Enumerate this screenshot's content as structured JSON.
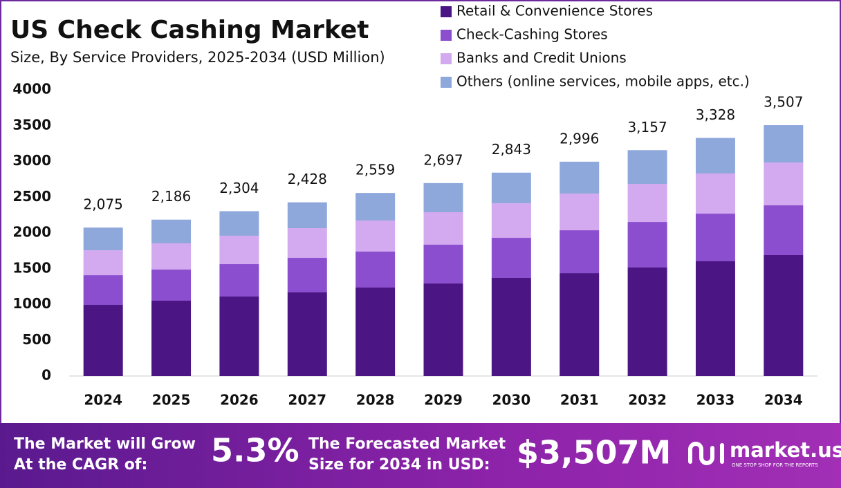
{
  "chart_data": {
    "type": "stacked-bar",
    "title": "US Check Cashing Market",
    "subtitle": "Size, By Service Providers, 2025-2034 (USD Million)",
    "categories": [
      "2024",
      "2025",
      "2026",
      "2027",
      "2028",
      "2029",
      "2030",
      "2031",
      "2032",
      "2033",
      "2034"
    ],
    "series": [
      {
        "name": "Retail & Convenience Stores",
        "color": "#4b1584",
        "values": [
          995,
          1053,
          1111,
          1169,
          1237,
          1294,
          1372,
          1439,
          1517,
          1604,
          1691
        ]
      },
      {
        "name": "Check-Cashing Stores",
        "color": "#8a4ecf",
        "values": [
          415,
          435,
          454,
          483,
          502,
          542,
          560,
          599,
          637,
          666,
          695
        ]
      },
      {
        "name": "Banks and Credit Unions",
        "color": "#d3a9ef",
        "values": [
          348,
          367,
          396,
          415,
          435,
          454,
          483,
          512,
          532,
          561,
          599
        ]
      },
      {
        "name": "Others (online services, mobile apps, etc.)",
        "color": "#8fa8dc",
        "values": [
          317,
          331,
          343,
          361,
          385,
          407,
          428,
          446,
          471,
          497,
          522
        ]
      }
    ],
    "totals": [
      2075,
      2186,
      2304,
      2428,
      2559,
      2697,
      2843,
      2996,
      3157,
      3328,
      3507
    ],
    "totals_labels": [
      "2,075",
      "2,186",
      "2,304",
      "2,428",
      "2,559",
      "2,697",
      "2,843",
      "2,996",
      "3,157",
      "3,328",
      "3,507"
    ],
    "ylim": [
      0,
      4000
    ],
    "yticks": [
      0,
      500,
      1000,
      1500,
      2000,
      2500,
      3000,
      3500,
      4000
    ],
    "grid": false,
    "legend": "top-right"
  },
  "footer": {
    "cagr_text": [
      "The Market will Grow",
      "At the CAGR of:"
    ],
    "cagr_value": "5.3%",
    "forecast_text": [
      "The Forecasted Market",
      "Size for 2034 in USD:"
    ],
    "forecast_value": "$3,507M",
    "brand": "market.us",
    "tagline": "ONE STOP SHOP FOR THE REPORTS"
  }
}
